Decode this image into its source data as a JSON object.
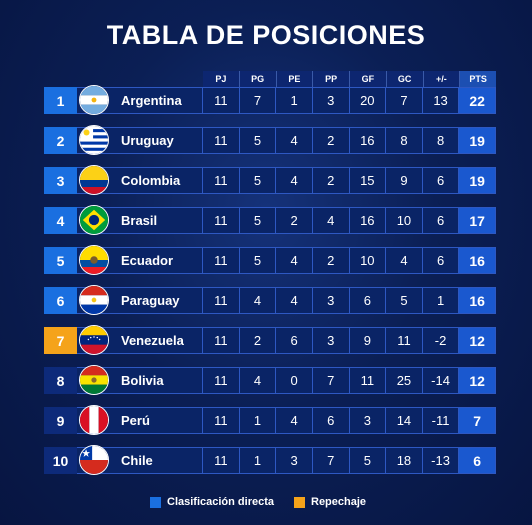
{
  "title": "TABLA DE POSICIONES",
  "columns": [
    "PJ",
    "PG",
    "PE",
    "PP",
    "GF",
    "GC",
    "+/-",
    "PTS"
  ],
  "rows": [
    {
      "pos": "1",
      "team": "Argentina",
      "zone": "direct",
      "flag": "argentina-flag-icon",
      "stats": [
        "11",
        "7",
        "1",
        "3",
        "20",
        "7",
        "13",
        "22"
      ]
    },
    {
      "pos": "2",
      "team": "Uruguay",
      "zone": "direct",
      "flag": "uruguay-flag-icon",
      "stats": [
        "11",
        "5",
        "4",
        "2",
        "16",
        "8",
        "8",
        "19"
      ]
    },
    {
      "pos": "3",
      "team": "Colombia",
      "zone": "direct",
      "flag": "colombia-flag-icon",
      "stats": [
        "11",
        "5",
        "4",
        "2",
        "15",
        "9",
        "6",
        "19"
      ]
    },
    {
      "pos": "4",
      "team": "Brasil",
      "zone": "direct",
      "flag": "brasil-flag-icon",
      "stats": [
        "11",
        "5",
        "2",
        "4",
        "16",
        "10",
        "6",
        "17"
      ]
    },
    {
      "pos": "5",
      "team": "Ecuador",
      "zone": "direct",
      "flag": "ecuador-flag-icon",
      "stats": [
        "11",
        "5",
        "4",
        "2",
        "10",
        "4",
        "6",
        "16"
      ]
    },
    {
      "pos": "6",
      "team": "Paraguay",
      "zone": "direct",
      "flag": "paraguay-flag-icon",
      "stats": [
        "11",
        "4",
        "4",
        "3",
        "6",
        "5",
        "1",
        "16"
      ]
    },
    {
      "pos": "7",
      "team": "Venezuela",
      "zone": "repechaje",
      "flag": "venezuela-flag-icon",
      "stats": [
        "11",
        "2",
        "6",
        "3",
        "9",
        "11",
        "-2",
        "12"
      ]
    },
    {
      "pos": "8",
      "team": "Bolivia",
      "zone": "out",
      "flag": "bolivia-flag-icon",
      "stats": [
        "11",
        "4",
        "0",
        "7",
        "11",
        "25",
        "-14",
        "12"
      ]
    },
    {
      "pos": "9",
      "team": "Perú",
      "zone": "out",
      "flag": "peru-flag-icon",
      "stats": [
        "11",
        "1",
        "4",
        "6",
        "3",
        "14",
        "-11",
        "7"
      ]
    },
    {
      "pos": "10",
      "team": "Chile",
      "zone": "out",
      "flag": "chile-flag-icon",
      "stats": [
        "11",
        "1",
        "3",
        "7",
        "5",
        "18",
        "-13",
        "6"
      ]
    }
  ],
  "legend": {
    "direct_label": "Clasificación directa",
    "repechaje_label": "Repechaje"
  },
  "colors": {
    "direct": "#1a6fe0",
    "repechaje": "#f5a31a",
    "background": "#0b1f55"
  }
}
